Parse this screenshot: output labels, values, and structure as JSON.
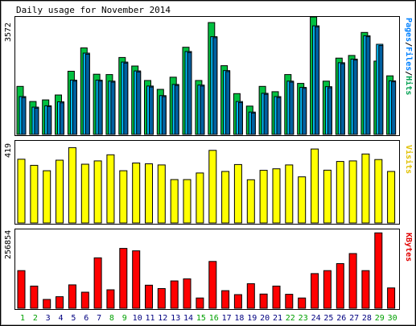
{
  "chart_data": {
    "type": "bar",
    "title": "Daily usage for November 2014",
    "categories": [
      "1",
      "2",
      "3",
      "4",
      "5",
      "6",
      "7",
      "8",
      "9",
      "10",
      "11",
      "12",
      "13",
      "14",
      "15",
      "16",
      "17",
      "18",
      "19",
      "20",
      "21",
      "22",
      "23",
      "24",
      "25",
      "26",
      "27",
      "28",
      "29",
      "30"
    ],
    "weekend_days": [
      "1",
      "2",
      "8",
      "9",
      "15",
      "16",
      "22",
      "23",
      "29",
      "30"
    ],
    "weekend_color": "#00a000",
    "weekday_color": "#000080",
    "panels": [
      {
        "id": "hits-pages-files",
        "ymax_label": "3572",
        "ymax": 3572,
        "ylabel_parts": [
          {
            "text": "Pages",
            "color": "#0080ff"
          },
          {
            "text": "/",
            "color": "#000000"
          },
          {
            "text": "Files",
            "color": "#0080ff"
          },
          {
            "text": "/",
            "color": "#000000"
          },
          {
            "text": "Hits",
            "color": "#00a050"
          }
        ],
        "series": [
          {
            "name": "Hits",
            "color": "#00c040",
            "values": [
              1460,
              1000,
              1050,
              1200,
              1920,
              2630,
              1830,
              1820,
              2340,
              2080,
              1640,
              1370,
              1740,
              2650,
              1640,
              3400,
              2090,
              1240,
              860,
              1460,
              1300,
              1820,
              1550,
              3570,
              1620,
              2320,
              2400,
              3100,
              2230,
              1780
            ]
          },
          {
            "name": "Files",
            "color": "#00c0ff",
            "values": [
              1150,
              830,
              870,
              990,
              1650,
              2470,
              1650,
              1620,
              2200,
              1930,
              1470,
              1180,
              1520,
              2520,
              1500,
              2970,
              1940,
              1000,
              680,
              1250,
              1150,
              1620,
              1430,
              3300,
              1450,
              2180,
              2290,
              3000,
              2740,
              1630
            ]
          },
          {
            "name": "Pages",
            "color": "#0060a0",
            "values": [
              1120,
              800,
              850,
              960,
              1620,
              2440,
              1620,
              1590,
              2170,
              1900,
              1440,
              1150,
              1490,
              2490,
              1470,
              2940,
              1910,
              970,
              650,
              1220,
              1120,
              1590,
              1400,
              3270,
              1420,
              2150,
              2260,
              2970,
              2700,
              1600
            ]
          }
        ]
      },
      {
        "id": "visits",
        "ymax_label": "419",
        "ymax": 419,
        "ylabel_parts": [
          {
            "text": "Visits",
            "color": "#e0c000"
          }
        ],
        "series": [
          {
            "name": "Visits",
            "color": "#ffff00",
            "values": [
              332,
              300,
              272,
              327,
              392,
              306,
              323,
              355,
              272,
              312,
              308,
              302,
              226,
              226,
              260,
              378,
              268,
              304,
              225,
              274,
              282,
              302,
              240,
              385,
              275,
              320,
              323,
              359,
              330,
              268
            ]
          }
        ]
      },
      {
        "id": "kbytes",
        "ymax_label": "256854",
        "ymax": 256854,
        "ylabel_parts": [
          {
            "text": "KBytes",
            "color": "#e00000"
          }
        ],
        "series": [
          {
            "name": "KBytes",
            "color": "#ff0000",
            "values": [
              124000,
              73000,
              29000,
              38000,
              77000,
              53000,
              166000,
              61000,
              197000,
              189000,
              76000,
              65000,
              90000,
              97000,
              34000,
              154000,
              58000,
              45000,
              81000,
              47000,
              73000,
              46000,
              34000,
              114000,
              124000,
              147000,
              180000,
              124000,
              248000,
              67000
            ]
          }
        ]
      }
    ]
  }
}
